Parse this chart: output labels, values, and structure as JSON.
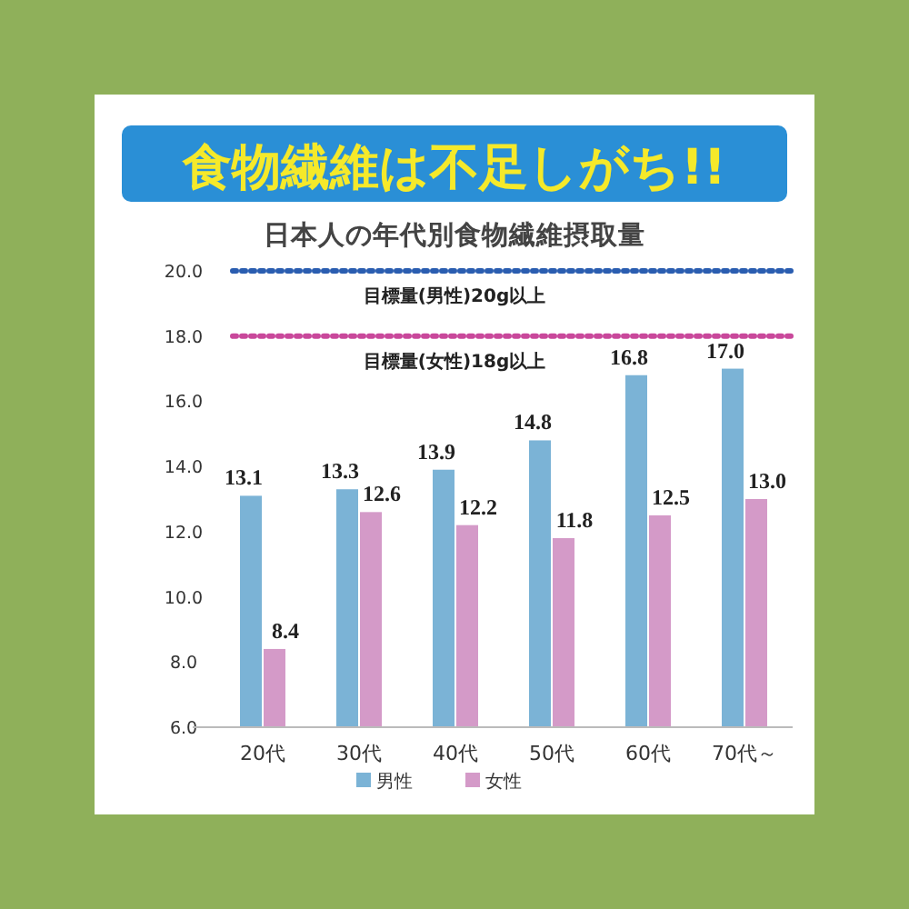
{
  "chart_data": {
    "type": "bar",
    "title": "食物繊維は不足しがち!!",
    "subtitle": "日本人の年代別食物繊維摂取量",
    "categories": [
      "20代",
      "30代",
      "40代",
      "50代",
      "60代",
      "70代～"
    ],
    "series": [
      {
        "name": "男性",
        "color": "#7bb3d6",
        "values": [
          13.1,
          13.3,
          13.9,
          14.8,
          16.8,
          17.0
        ],
        "value_labels": [
          "13.1",
          "13.3",
          "13.9",
          "14.8",
          "16.8",
          "17.0"
        ]
      },
      {
        "name": "女性",
        "color": "#d49ac8",
        "values": [
          8.4,
          12.6,
          12.2,
          11.8,
          12.5,
          13.0
        ],
        "value_labels": [
          "8.4",
          "12.6",
          "12.2",
          "11.8",
          "12.5",
          "13.0"
        ]
      }
    ],
    "ylim": [
      6,
      20
    ],
    "yticks": [
      {
        "value": 6,
        "label": "6.0"
      },
      {
        "value": 8,
        "label": "8.0"
      },
      {
        "value": 10,
        "label": "10.0"
      },
      {
        "value": 12,
        "label": "12.0"
      },
      {
        "value": 14,
        "label": "14.0"
      },
      {
        "value": 16,
        "label": "16.0"
      },
      {
        "value": 18,
        "label": "18.0"
      },
      {
        "value": 20,
        "label": "20.0"
      }
    ],
    "ref_lines": [
      {
        "axis": "y",
        "value": 20,
        "label": "目標量(男性)20g以上",
        "color": "#2a5db0",
        "line_style": "dotted"
      },
      {
        "axis": "y",
        "value": 18,
        "label": "目標量(女性)18g以上",
        "color": "#c9489b",
        "line_style": "dotted"
      }
    ],
    "grid": false,
    "legend": "bottom"
  }
}
